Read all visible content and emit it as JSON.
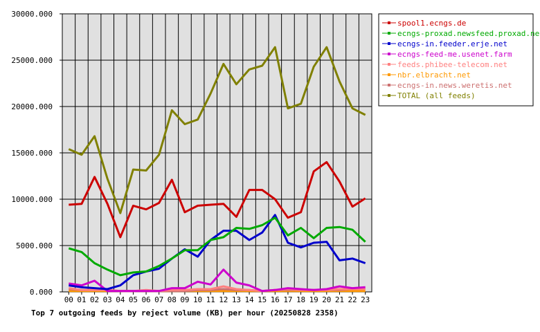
{
  "chart_data": {
    "type": "line",
    "title": "Top 7 outgoing feeds by reject volume (KB) per hour (20250828 2358)",
    "x": [
      "00",
      "01",
      "02",
      "03",
      "04",
      "05",
      "06",
      "07",
      "08",
      "09",
      "10",
      "11",
      "12",
      "13",
      "14",
      "15",
      "16",
      "17",
      "18",
      "19",
      "20",
      "21",
      "22",
      "23"
    ],
    "ylim": [
      0,
      30000
    ],
    "yticks": [
      "0.000",
      "5000.000",
      "10000.000",
      "15000.000",
      "20000.000",
      "25000.000",
      "30000.000"
    ],
    "grid": true,
    "legend_position": "top-right",
    "series": [
      {
        "name": "spool1.ecngs.de",
        "color": "#cc0000",
        "values": [
          9400,
          9500,
          12400,
          9500,
          5900,
          9300,
          8900,
          9600,
          12100,
          8600,
          9300,
          9400,
          9500,
          8100,
          11000,
          11000,
          10000,
          8000,
          8600,
          13000,
          14000,
          11900,
          9200,
          10100
        ]
      },
      {
        "name": "ecngs-proxad.newsfeed.proxad.net",
        "color": "#00aa00",
        "values": [
          4700,
          4300,
          3100,
          2400,
          1800,
          2100,
          2200,
          2800,
          3600,
          4500,
          4500,
          5600,
          5900,
          6900,
          6800,
          7200,
          8000,
          6100,
          6900,
          5800,
          6900,
          7000,
          6700,
          5400
        ]
      },
      {
        "name": "ecngs-in.feeder.erje.net",
        "color": "#0000cc",
        "values": [
          700,
          500,
          400,
          300,
          700,
          1800,
          2200,
          2500,
          3600,
          4600,
          3800,
          5600,
          6600,
          6600,
          5600,
          6400,
          8300,
          5300,
          4800,
          5300,
          5400,
          3400,
          3600,
          3100
        ]
      },
      {
        "name": "ecngs-feed-me.usenet.farm",
        "color": "#cc00cc",
        "values": [
          900,
          700,
          1200,
          100,
          100,
          100,
          100,
          100,
          400,
          400,
          1100,
          800,
          2400,
          1000,
          700,
          100,
          200,
          400,
          300,
          200,
          300,
          600,
          400,
          500
        ]
      },
      {
        "name": "feeds.phibee-telecom.net",
        "color": "#ff8080",
        "values": [
          400,
          200,
          200,
          200,
          100,
          100,
          200,
          100,
          200,
          200,
          300,
          300,
          600,
          300,
          200,
          100,
          200,
          300,
          200,
          200,
          200,
          300,
          300,
          300
        ]
      },
      {
        "name": "nbr.elbracht.net",
        "color": "#ff9900",
        "values": [
          100,
          100,
          100,
          100,
          100,
          100,
          100,
          100,
          100,
          100,
          100,
          100,
          100,
          100,
          100,
          100,
          100,
          100,
          100,
          100,
          100,
          100,
          100,
          100
        ]
      },
      {
        "name": "ecngs-in.news.weretis.net",
        "color": "#cc7070",
        "values": [
          300,
          200,
          200,
          200,
          100,
          100,
          100,
          100,
          100,
          100,
          200,
          200,
          300,
          200,
          200,
          100,
          200,
          200,
          200,
          200,
          200,
          200,
          300,
          300
        ]
      },
      {
        "name": "TOTAL (all feeds)",
        "color": "#808000",
        "values": [
          15400,
          14800,
          16800,
          12200,
          8500,
          13200,
          13100,
          14800,
          19600,
          18100,
          18600,
          21400,
          24600,
          22400,
          24000,
          24400,
          26400,
          19800,
          20300,
          24300,
          26400,
          22700,
          19800,
          19100
        ]
      }
    ]
  }
}
